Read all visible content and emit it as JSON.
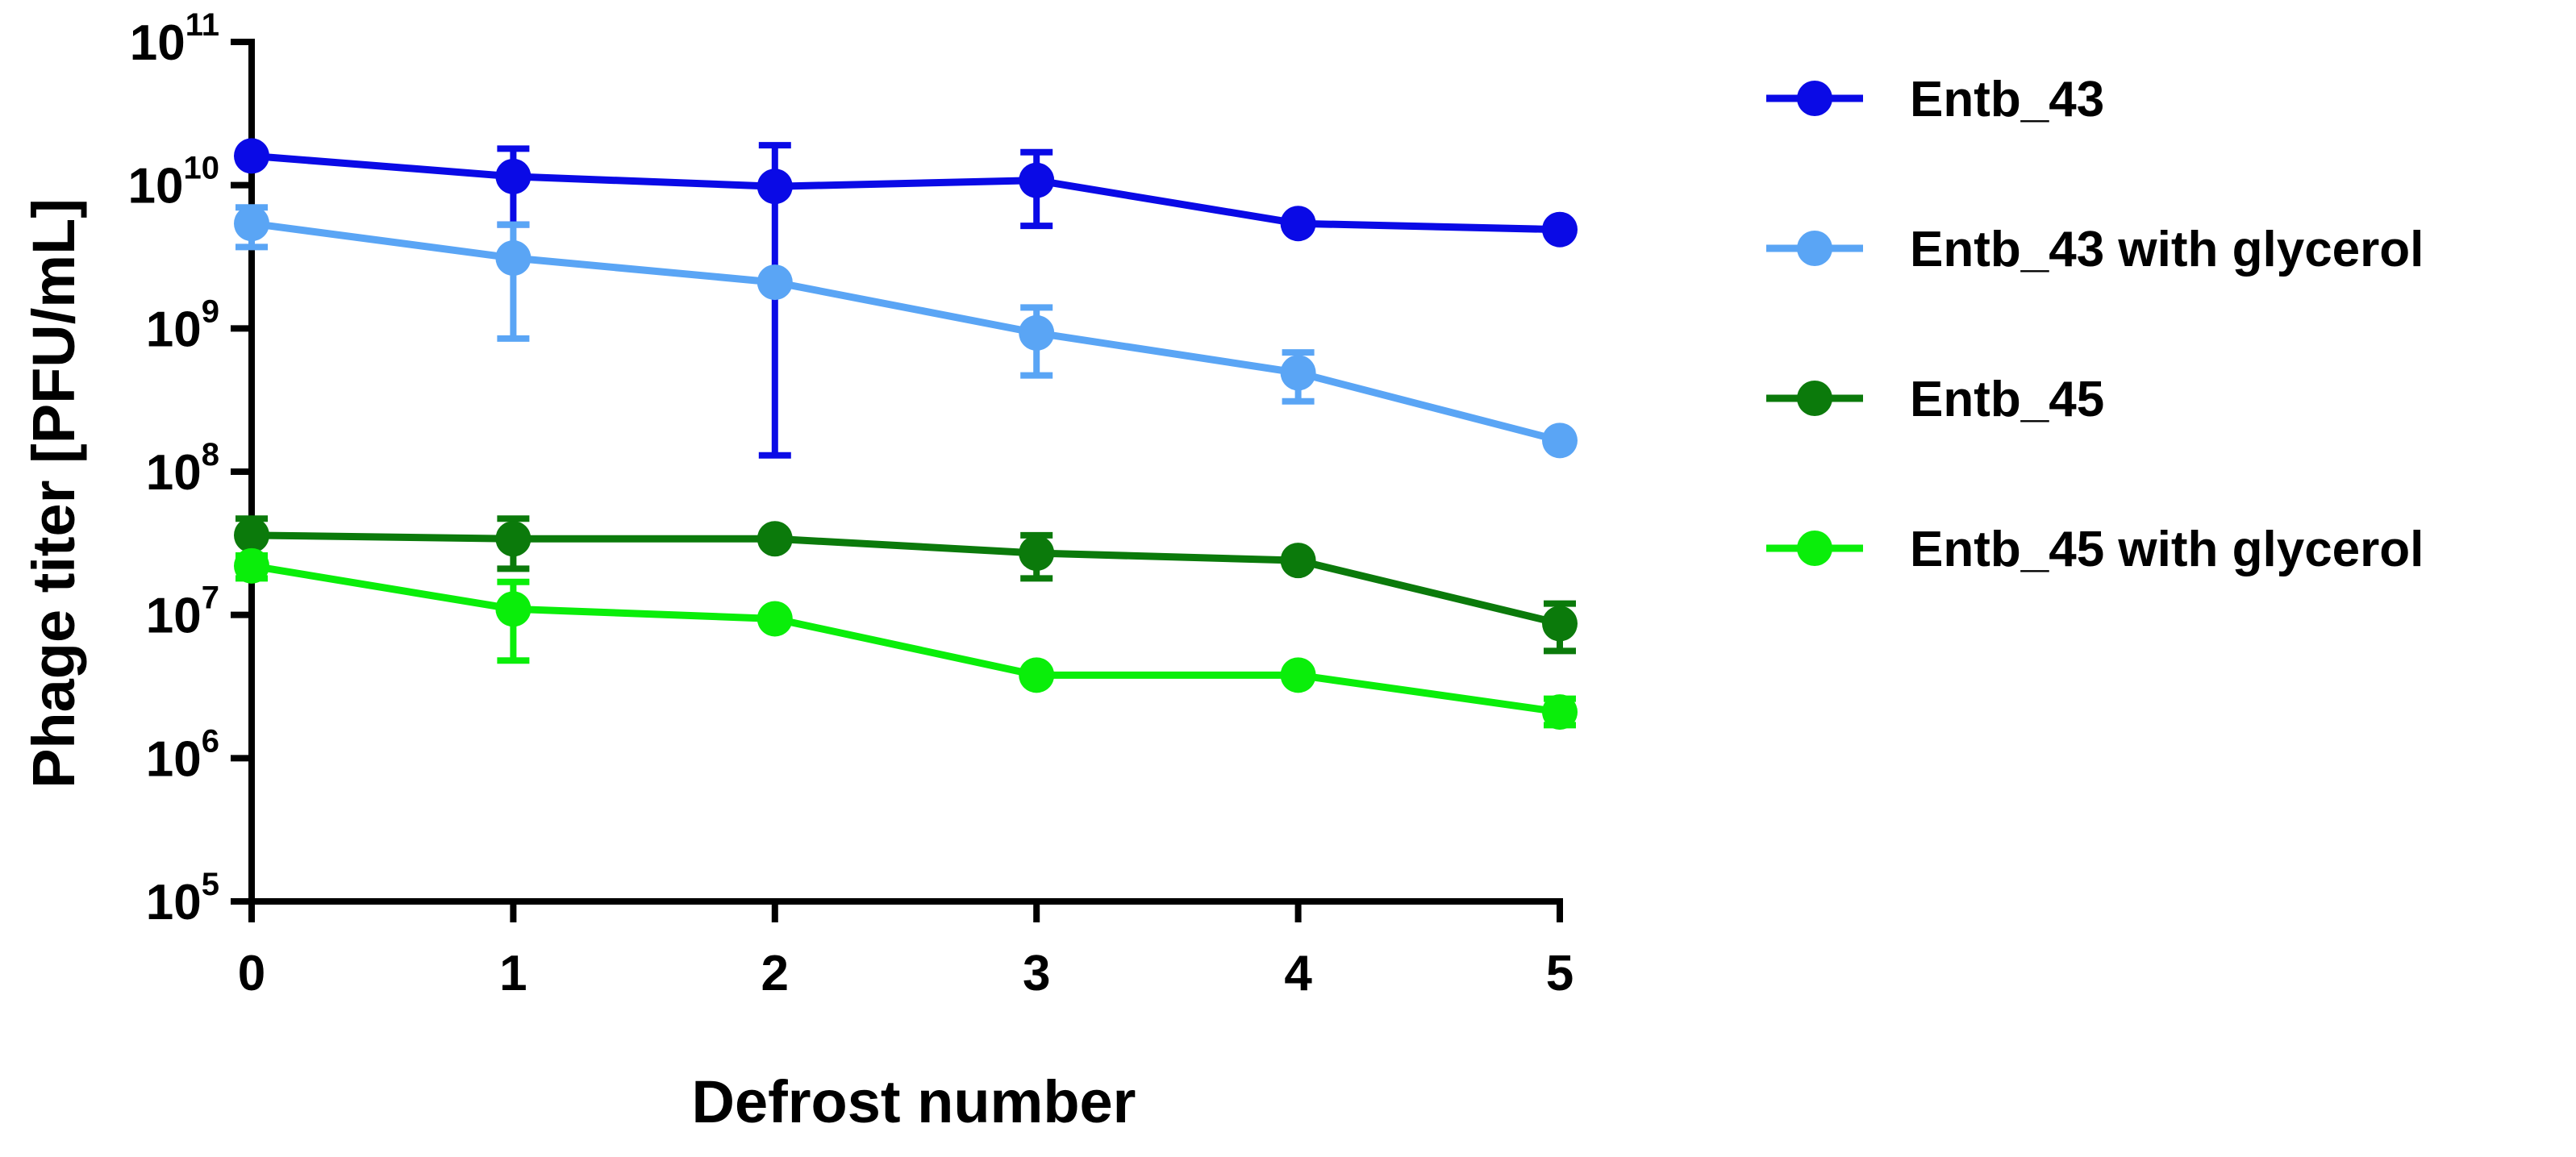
{
  "chart_data": {
    "type": "line",
    "title": "",
    "xlabel": "Defrost number",
    "ylabel": "Phage titer [PFU/mL]",
    "x": [
      0,
      1,
      2,
      3,
      4,
      5
    ],
    "xlim": [
      0,
      5
    ],
    "ylim": [
      100000,
      100000000000
    ],
    "y_scale": "log",
    "x_ticks": [
      "0",
      "1",
      "2",
      "3",
      "4",
      "5"
    ],
    "y_ticks": [
      {
        "value": 100000,
        "base": "10",
        "exp": "5"
      },
      {
        "value": 1000000,
        "base": "10",
        "exp": "6"
      },
      {
        "value": 10000000,
        "base": "10",
        "exp": "7"
      },
      {
        "value": 100000000,
        "base": "10",
        "exp": "8"
      },
      {
        "value": 1000000000,
        "base": "10",
        "exp": "9"
      },
      {
        "value": 10000000000,
        "base": "10",
        "exp": "10"
      },
      {
        "value": 100000000000,
        "base": "10",
        "exp": "11"
      }
    ],
    "grid": false,
    "legend_position": "right",
    "series": [
      {
        "name": "Entb_43",
        "color": "#0a0ae6",
        "values": [
          16000000000,
          11500000000,
          9800000000,
          10800000000,
          5400000000,
          4900000000
        ],
        "err_low": [
          null,
          5300000000,
          130000000,
          5200000000,
          null,
          null
        ],
        "err_high": [
          null,
          18000000000,
          19000000000,
          17000000000,
          null,
          null
        ]
      },
      {
        "name": "Entb_43 with glycerol",
        "color": "#5aa5f5",
        "values": [
          5400000000,
          3100000000,
          2100000000,
          930000000,
          490000000,
          165000000
        ],
        "err_low": [
          3700000000,
          850000000,
          null,
          470000000,
          310000000,
          null
        ],
        "err_high": [
          7000000000,
          5300000000,
          null,
          1400000000,
          680000000,
          null
        ]
      },
      {
        "name": "Entb_45",
        "color": "#0b7a0b",
        "values": [
          36000000,
          34000000,
          34000000,
          27000000,
          24000000,
          8700000
        ],
        "err_low": [
          26000000,
          21000000,
          null,
          18000000,
          null,
          5600000
        ],
        "err_high": [
          47000000,
          47000000,
          null,
          36000000,
          null,
          12000000
        ]
      },
      {
        "name": "Entb_45 with glycerol",
        "color": "#0aee0a",
        "values": [
          22000000,
          11000000,
          9400000,
          3800000,
          3800000,
          2100000
        ],
        "err_low": [
          18000000,
          4800000,
          null,
          null,
          null,
          1700000
        ],
        "err_high": [
          26000000,
          17000000,
          null,
          null,
          null,
          2600000
        ]
      }
    ]
  }
}
